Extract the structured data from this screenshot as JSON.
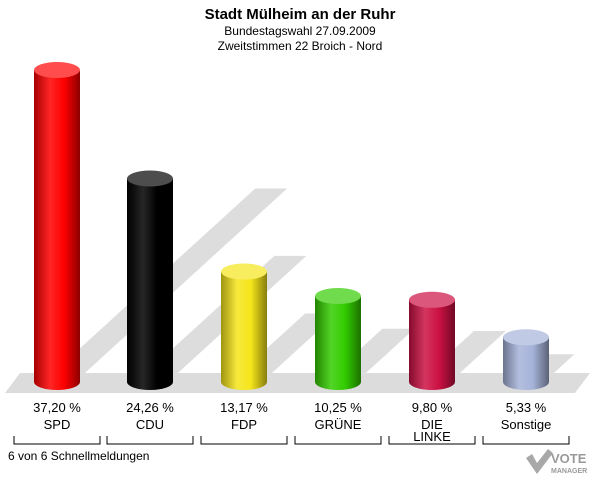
{
  "header": {
    "title": "Stadt Mülheim an der Ruhr",
    "subtitle1": "Bundestagswahl 27.09.2009",
    "subtitle2": "Zweitstimmen 22 Broich - Nord"
  },
  "footer": {
    "text": "6 von 6 Schnellmeldungen"
  },
  "logo": {
    "line1": "VOTE",
    "line2": "MANAGER"
  },
  "chart_data": {
    "type": "bar",
    "title": "Stadt Mülheim an der Ruhr",
    "subtitle": "Bundestagswahl 27.09.2009 — Zweitstimmen 22 Broich - Nord",
    "xlabel": "",
    "ylabel": "",
    "ylim": [
      0,
      37.2
    ],
    "grid": false,
    "legend": "none",
    "categories": [
      "SPD",
      "CDU",
      "FDP",
      "GRÜNE",
      "DIE LINKE",
      "Sonstige"
    ],
    "category_lines": [
      [
        "SPD"
      ],
      [
        "CDU"
      ],
      [
        "FDP"
      ],
      [
        "GRÜNE"
      ],
      [
        "DIE",
        "LINKE"
      ],
      [
        "Sonstige"
      ]
    ],
    "values": [
      37.2,
      24.26,
      13.17,
      10.25,
      9.8,
      5.33
    ],
    "value_labels": [
      "37,20 %",
      "24,26 %",
      "13,17 %",
      "10,25 %",
      "9,80 %",
      "5,33 %"
    ],
    "colors": [
      "#ff0000",
      "#000000",
      "#f5e51a",
      "#33cc00",
      "#cc1144",
      "#a6b3d9"
    ]
  }
}
